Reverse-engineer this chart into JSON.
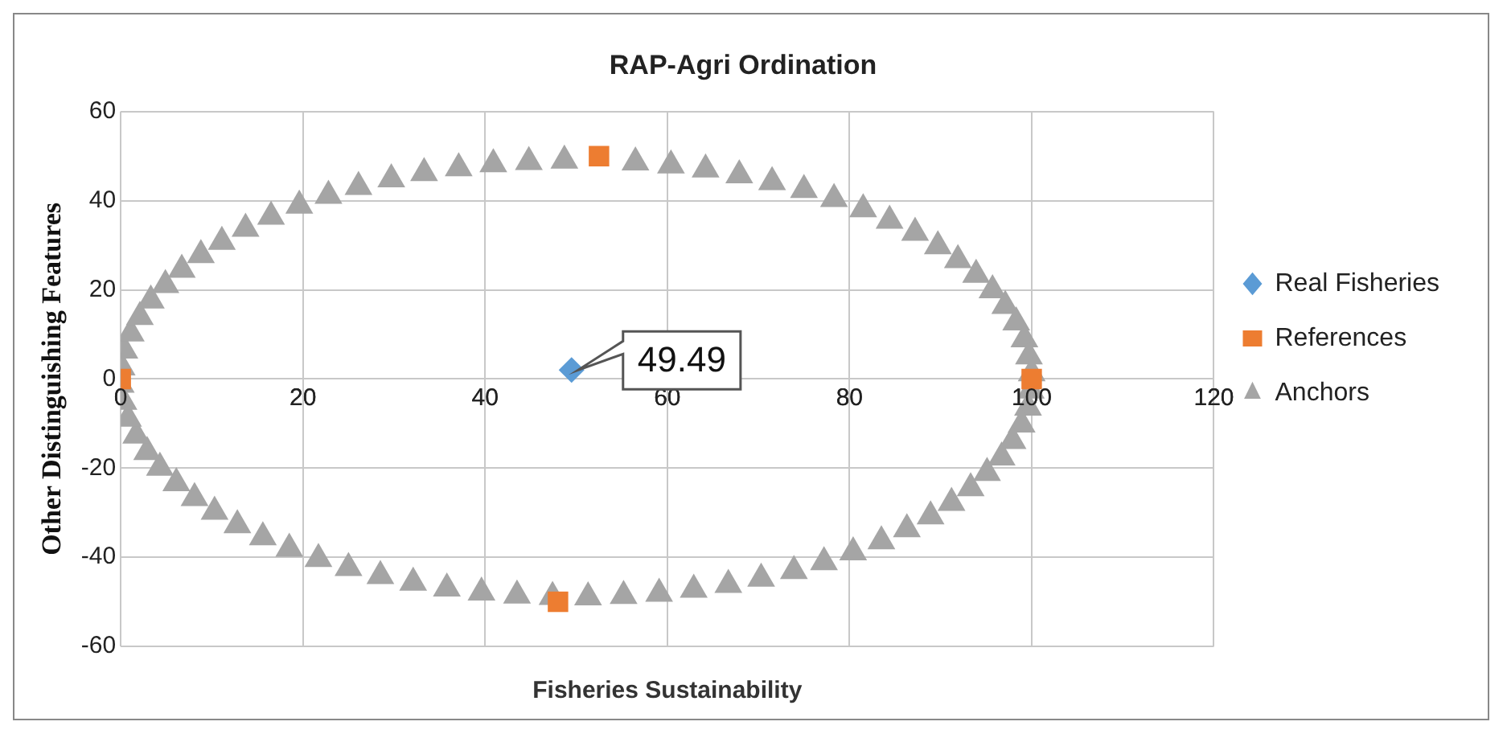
{
  "chart_data": {
    "type": "scatter",
    "title": "RAP-Agri Ordination",
    "xlabel": "Fisheries Sustainability",
    "ylabel": "Other Distinguishing Features",
    "xlim": [
      0,
      120
    ],
    "xticks": [
      0,
      20,
      40,
      60,
      80,
      100,
      120
    ],
    "ylim": [
      -60,
      60
    ],
    "yticks": [
      -60,
      -40,
      -20,
      0,
      20,
      40,
      60
    ],
    "grid": true,
    "legend": "right",
    "annotations": [
      {
        "text": "49.49",
        "x": 49.49,
        "y": 2
      }
    ],
    "series": [
      {
        "name": "Real Fisheries",
        "color": "#5b9bd5",
        "marker": "diamond",
        "x": [
          49.49
        ],
        "values": [
          2
        ]
      },
      {
        "name": "References",
        "color": "#ed7d31",
        "marker": "square",
        "x": [
          0,
          100,
          52.5,
          48
        ],
        "values": [
          0,
          0,
          50,
          -50
        ]
      },
      {
        "name": "Anchors",
        "color": "#a5a5a5",
        "marker": "triangle",
        "x": [
          0.1,
          0.4,
          1.1,
          2.1,
          3.3,
          4.9,
          6.7,
          8.8,
          11.1,
          13.7,
          16.5,
          19.6,
          22.8,
          26.1,
          29.7,
          33.3,
          37.1,
          40.9,
          44.8,
          48.7,
          52.6,
          56.5,
          60.4,
          64.2,
          67.9,
          71.5,
          75,
          78.3,
          81.5,
          84.4,
          87.2,
          89.7,
          91.9,
          93.9,
          95.7,
          97.1,
          98.3,
          99.2,
          99.7,
          100,
          99.9,
          99.6,
          98.9,
          97.9,
          96.7,
          95.1,
          93.3,
          91.2,
          88.9,
          86.3,
          83.5,
          80.4,
          77.2,
          73.9,
          70.3,
          66.7,
          62.9,
          59.1,
          55.2,
          51.3,
          47.4,
          43.5,
          39.6,
          35.8,
          32.1,
          28.5,
          25,
          21.7,
          18.5,
          15.6,
          12.8,
          10.3,
          8.1,
          6.1,
          4.3,
          2.9,
          1.7,
          0.8,
          0.3,
          0
        ],
        "values": [
          2.6,
          6.4,
          10.2,
          13.9,
          17.6,
          21.1,
          24.5,
          27.8,
          30.8,
          33.7,
          36.4,
          38.9,
          41.1,
          43.1,
          44.8,
          46.2,
          47.3,
          48.2,
          48.7,
          49,
          null,
          48.6,
          47.9,
          47,
          45.7,
          44.2,
          42.4,
          40.4,
          38.1,
          35.5,
          32.8,
          29.8,
          26.7,
          23.4,
          19.9,
          16.4,
          12.7,
          8.9,
          5.1,
          1.3,
          -2.6,
          -6.4,
          -10.2,
          -13.9,
          -17.6,
          -21.1,
          -24.5,
          -27.8,
          -30.8,
          -33.7,
          -36.4,
          -38.9,
          -41.1,
          -43.1,
          -44.8,
          -46.2,
          -47.3,
          -48.2,
          -48.7,
          -49,
          -48.9,
          -48.6,
          -47.9,
          -47,
          -45.7,
          -44.2,
          -42.4,
          -40.4,
          -38.1,
          -35.5,
          -32.8,
          -29.8,
          -26.7,
          -23.4,
          -19.9,
          -16.4,
          -12.7,
          -8.9,
          -5.1,
          -1.3
        ]
      }
    ]
  }
}
